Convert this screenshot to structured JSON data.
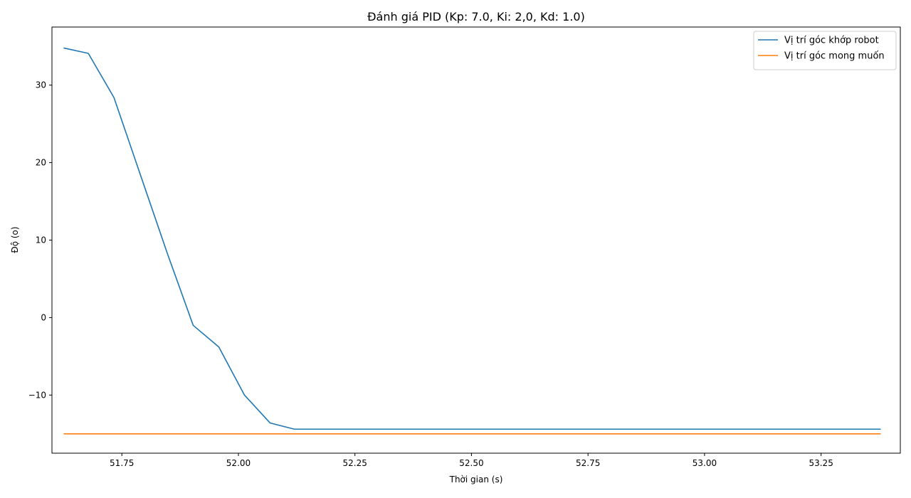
{
  "chart_data": {
    "type": "line",
    "title": "Đánh giá PID (Kp: 7.0, Ki: 2,0, Kd: 1.0)",
    "xlabel": "Thời gian (s)",
    "ylabel": "Độ (o)",
    "xlim": [
      51.6,
      53.42
    ],
    "ylim": [
      -17.5,
      37.5
    ],
    "xticks": [
      51.75,
      52.0,
      52.25,
      52.5,
      52.75,
      53.0,
      53.25
    ],
    "xtick_labels": [
      "51.75",
      "52.00",
      "52.25",
      "52.50",
      "52.75",
      "53.00",
      "53.25"
    ],
    "yticks": [
      -10,
      0,
      10,
      20,
      30
    ],
    "ytick_labels": [
      "−10",
      "0",
      "10",
      "20",
      "30"
    ],
    "grid": false,
    "legend_position": "top-right",
    "series": [
      {
        "name": "Vị trí góc khớp robot",
        "color": "#1f77b4",
        "x": [
          51.625,
          51.678,
          51.733,
          51.795,
          51.848,
          51.903,
          51.958,
          52.013,
          52.068,
          52.12,
          52.175,
          52.3,
          52.5,
          52.75,
          53.0,
          53.25,
          53.378
        ],
        "y": [
          34.8,
          34.1,
          28.4,
          17.5,
          8.2,
          -1.0,
          -3.8,
          -10.0,
          -13.6,
          -14.4,
          -14.4,
          -14.4,
          -14.4,
          -14.4,
          -14.4,
          -14.4,
          -14.4
        ]
      },
      {
        "name": "Vị trí góc mong muốn",
        "color": "#ff7f0e",
        "x": [
          51.625,
          53.378
        ],
        "y": [
          -15.0,
          -15.0
        ]
      }
    ]
  }
}
